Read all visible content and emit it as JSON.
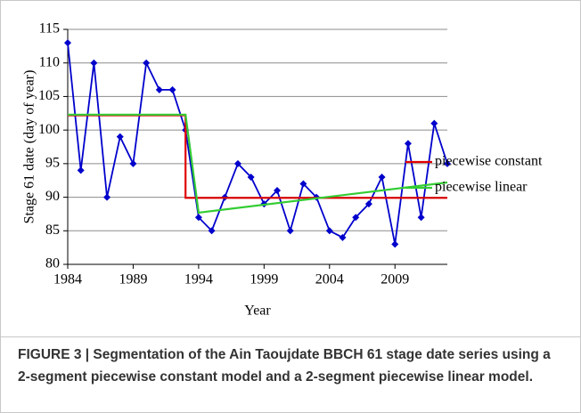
{
  "chart_data": {
    "type": "line",
    "xlabel": "Year",
    "ylabel": "Stage 61 date (day of year)",
    "caption": "FIGURE 3 | Segmentation of the Ain Taoujdate BBCH 61 stage date series using a 2-segment piecewise constant model and a 2-segment piecewise linear model.",
    "xlim": [
      1984,
      2013
    ],
    "xticks": [
      1984,
      1989,
      1994,
      1999,
      2004,
      2009
    ],
    "ylim": [
      80,
      115
    ],
    "yticks": [
      80,
      85,
      90,
      95,
      100,
      105,
      110,
      115
    ],
    "grid": true,
    "legend": "right",
    "series": [
      {
        "color": "#0000cc",
        "marker": "diamond",
        "x": [
          1984,
          1985,
          1986,
          1987,
          1988,
          1989,
          1990,
          1991,
          1992,
          1993,
          1994,
          1995,
          1996,
          1997,
          1998,
          1999,
          2000,
          2001,
          2002,
          2003,
          2004,
          2005,
          2006,
          2007,
          2008,
          2009,
          2010,
          2011,
          2012,
          2013
        ],
        "values": [
          113,
          94,
          110,
          90,
          99,
          95,
          110,
          106,
          106,
          100,
          87,
          85,
          90,
          95,
          93,
          89,
          91,
          85,
          92,
          90,
          85,
          84,
          87,
          89,
          93,
          83,
          98,
          87,
          101,
          95
        ]
      },
      {
        "name": "piecewise constant",
        "color": "#e00000",
        "x": [
          1984,
          1993,
          1993,
          2013
        ],
        "values": [
          102.2,
          102.2,
          89.9,
          89.9
        ]
      },
      {
        "name": "piecewise linear",
        "color": "#33cc33",
        "x": [
          1984,
          1993,
          1994,
          2013
        ],
        "values": [
          102.3,
          102.3,
          87.7,
          92.2
        ]
      }
    ]
  }
}
